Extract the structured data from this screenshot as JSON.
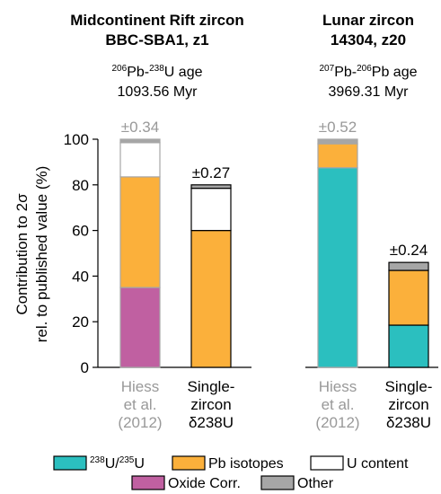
{
  "panels": [
    {
      "title_line1": "Midcontinent Rift zircon",
      "title_line2": "BBC-SBA1, z1",
      "age_label_iso1_mass": "206",
      "age_label_iso1_el": "Pb",
      "age_label_iso2_mass": "238",
      "age_label_iso2_el": "U",
      "age_label_suffix": " age",
      "age_value": "1093.56 Myr"
    },
    {
      "title_line1": "Lunar zircon",
      "title_line2": "14304, z20",
      "age_label_iso1_mass": "207",
      "age_label_iso1_el": "Pb",
      "age_label_iso2_mass": "206",
      "age_label_iso2_el": "Pb",
      "age_label_suffix": " age",
      "age_value": "3969.31 Myr"
    }
  ],
  "colors": {
    "238U/235U": "#2bbfbf",
    "Pb isotopes": "#fbb03b",
    "U content": "#ffffff",
    "Oxide Corr.": "#c060a1",
    "Other": "#a6a6a6",
    "faded_outline": "#a6a6a6",
    "faded_text": "#999999",
    "outline": "#000000"
  },
  "chart_data": {
    "type": "bar",
    "stacked": true,
    "ylabel_line1": "Contribution to 2σ",
    "ylabel_line2": "rel. to published value (%)",
    "ylim": [
      0,
      100
    ],
    "yticks": [
      0,
      20,
      40,
      60,
      80,
      100
    ],
    "components": [
      "238U/235U",
      "Oxide Corr.",
      "Pb isotopes",
      "U content",
      "Other"
    ],
    "bars": [
      {
        "panel": 0,
        "category_line1": "Hiess",
        "category_line2": "et al.",
        "category_line3": "(2012)",
        "faded": true,
        "total_label": "±0.34",
        "segments": [
          {
            "component": "Oxide Corr.",
            "value": 35
          },
          {
            "component": "Pb isotopes",
            "value": 48.5
          },
          {
            "component": "U content",
            "value": 15
          },
          {
            "component": "Other",
            "value": 1.5
          }
        ]
      },
      {
        "panel": 0,
        "category_line1": "Single-",
        "category_line2": "zircon",
        "category_line3": "δ238U",
        "faded": false,
        "total_label": "±0.27",
        "segments": [
          {
            "component": "Pb isotopes",
            "value": 60
          },
          {
            "component": "U content",
            "value": 18.5
          },
          {
            "component": "Other",
            "value": 1.5
          }
        ]
      },
      {
        "panel": 1,
        "category_line1": "Hiess",
        "category_line2": "et al.",
        "category_line3": "(2012)",
        "faded": true,
        "total_label": "±0.52",
        "segments": [
          {
            "component": "238U/235U",
            "value": 87.5
          },
          {
            "component": "Pb isotopes",
            "value": 10.5
          },
          {
            "component": "Other",
            "value": 2
          }
        ]
      },
      {
        "panel": 1,
        "category_line1": "Single-",
        "category_line2": "zircon",
        "category_line3": "δ238U",
        "faded": false,
        "total_label": "±0.24",
        "segments": [
          {
            "component": "238U/235U",
            "value": 18.5
          },
          {
            "component": "Pb isotopes",
            "value": 24
          },
          {
            "component": "Other",
            "value": 3.5
          }
        ]
      }
    ],
    "legend": [
      {
        "key": "238U/235U",
        "mass1": "238",
        "el1": "U/",
        "mass2": "235",
        "el2": "U"
      },
      {
        "key": "Pb isotopes",
        "label": "Pb isotopes"
      },
      {
        "key": "U content",
        "label": "U content"
      },
      {
        "key": "Oxide Corr.",
        "label": "Oxide Corr."
      },
      {
        "key": "Other",
        "label": "Other"
      }
    ]
  }
}
